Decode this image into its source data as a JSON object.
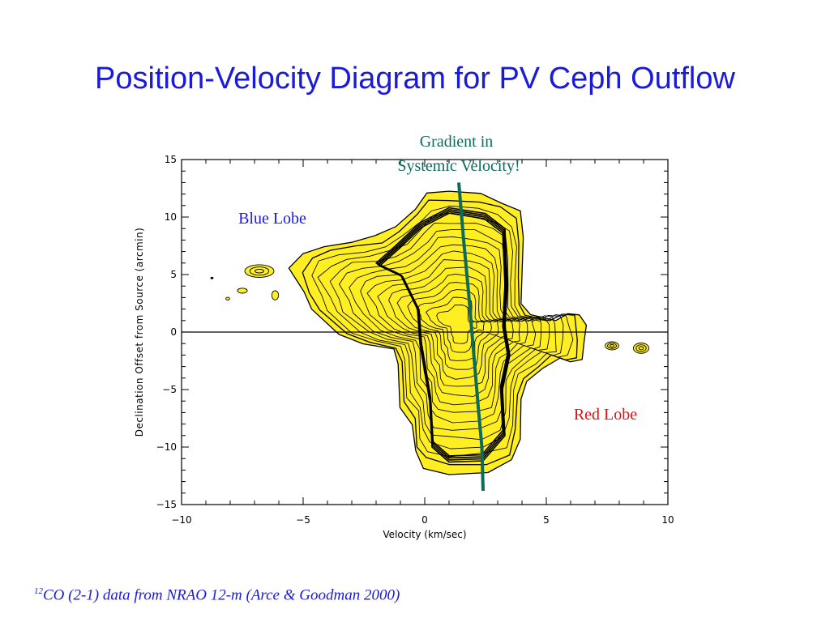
{
  "slide": {
    "title": "Position-Velocity Diagram for PV Ceph Outflow",
    "caption_sup": "12",
    "caption_text": "CO (2-1) data from NRAO 12-m (Arce & Goodman 2000)"
  },
  "chart_data": {
    "type": "contour",
    "xlabel": "Velocity (km/sec)",
    "ylabel": "Declination Offset from Source (arcmin)",
    "xlim": [
      -10,
      10
    ],
    "ylim": [
      -15,
      15
    ],
    "xticks": [
      -10,
      -5,
      0,
      5,
      10
    ],
    "xtick_labels": [
      "−10",
      "−5",
      "0",
      "5",
      "10"
    ],
    "yticks": [
      -15,
      -10,
      -5,
      0,
      5,
      10,
      15
    ],
    "ytick_labels": [
      "−15",
      "−10",
      "−5",
      "0",
      "5",
      "10",
      "15"
    ],
    "zero_line_y": 0,
    "fill_color": "#ffee22",
    "contour_color": "#000000",
    "contour_levels": 16,
    "main_outline": [
      [
        0.1,
        12.0
      ],
      [
        1.0,
        12.2
      ],
      [
        2.3,
        12.0
      ],
      [
        3.2,
        11.4
      ],
      [
        3.9,
        10.4
      ],
      [
        4.05,
        8.2
      ],
      [
        4.0,
        5.0
      ],
      [
        4.0,
        2.5
      ],
      [
        4.3,
        1.5
      ],
      [
        5.4,
        1.0
      ],
      [
        5.9,
        1.6
      ],
      [
        6.4,
        1.5
      ],
      [
        6.55,
        0.6
      ],
      [
        6.6,
        -0.8
      ],
      [
        6.5,
        -2.4
      ],
      [
        6.0,
        -2.6
      ],
      [
        5.5,
        -2.2
      ],
      [
        4.9,
        -3.2
      ],
      [
        4.2,
        -4.3
      ],
      [
        3.95,
        -5.8
      ],
      [
        3.9,
        -9.2
      ],
      [
        3.6,
        -11.3
      ],
      [
        2.6,
        -12.2
      ],
      [
        1.0,
        -12.3
      ],
      [
        -0.05,
        -11.8
      ],
      [
        -0.4,
        -10.5
      ],
      [
        -0.5,
        -8.0
      ],
      [
        -1.0,
        -6.5
      ],
      [
        -1.1,
        -2.8
      ],
      [
        -1.3,
        -1.5
      ],
      [
        -2.5,
        -1.0
      ],
      [
        -3.5,
        -0.2
      ],
      [
        -4.7,
        2.0
      ],
      [
        -5.0,
        3.5
      ],
      [
        -5.5,
        5.5
      ],
      [
        -5.0,
        6.8
      ],
      [
        -4.2,
        7.5
      ],
      [
        -3.0,
        7.8
      ],
      [
        -2.0,
        8.3
      ],
      [
        -1.2,
        9.2
      ],
      [
        -0.4,
        10.8
      ]
    ],
    "core_ridge": [
      [
        1.0,
        10.8
      ],
      [
        2.5,
        10.3
      ],
      [
        3.3,
        9.0
      ],
      [
        3.4,
        4.0
      ],
      [
        3.3,
        0.5
      ],
      [
        3.5,
        -2.0
      ],
      [
        3.2,
        -5.0
      ],
      [
        3.3,
        -9.0
      ],
      [
        2.4,
        -11.2
      ],
      [
        1.0,
        -11.3
      ],
      [
        0.3,
        -10.0
      ],
      [
        0.2,
        -6.0
      ],
      [
        -0.2,
        -1.0
      ],
      [
        -0.3,
        2.0
      ],
      [
        -1.0,
        5.0
      ],
      [
        -2.0,
        6.0
      ],
      [
        -1.2,
        7.5
      ],
      [
        -0.2,
        9.5
      ]
    ],
    "blobs": [
      {
        "cx": -6.8,
        "cy": 5.3,
        "rx": 0.6,
        "ry": 0.55
      },
      {
        "cx": -7.5,
        "cy": 3.6,
        "rx": 0.2,
        "ry": 0.22
      },
      {
        "cx": -6.15,
        "cy": 3.2,
        "rx": 0.14,
        "ry": 0.4
      },
      {
        "cx": -8.1,
        "cy": 2.9,
        "rx": 0.08,
        "ry": 0.12
      },
      {
        "cx": -8.75,
        "cy": 4.7,
        "rx": 0.05,
        "ry": 0.07
      },
      {
        "cx": 7.7,
        "cy": -1.2,
        "rx": 0.28,
        "ry": 0.35
      },
      {
        "cx": 8.9,
        "cy": -1.4,
        "rx": 0.32,
        "ry": 0.45
      }
    ],
    "gradient_line": [
      [
        1.4,
        13.0
      ],
      [
        1.6,
        8.0
      ],
      [
        1.8,
        3.5
      ],
      [
        2.0,
        -1.5
      ],
      [
        2.2,
        -6.5
      ],
      [
        2.35,
        -10.0
      ],
      [
        2.4,
        -13.8
      ]
    ],
    "gradient_line_color": "#0d6b5e",
    "annotations": {
      "gradient_line1": "Gradient in",
      "gradient_line2": "Systemic Velocity!",
      "blue_lobe": "Blue Lobe",
      "red_lobe": "Red Lobe",
      "gradient_color": "#0d6b5e",
      "blue_color": "#1a1adb",
      "red_color": "#dd1111"
    }
  }
}
